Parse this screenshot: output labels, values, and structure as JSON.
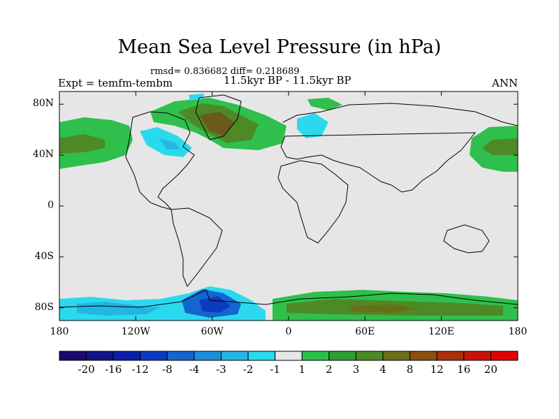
{
  "title": "Mean Sea Level Pressure (in hPa)",
  "stats_line": "rmsd= 0.836682 diff= 0.218689",
  "period": "11.5kyr BP - 11.5kyr BP",
  "experiment": "Expt = temfm-tembm",
  "season": "ANN",
  "lat_ticks": [
    "80N",
    "40N",
    "0",
    "40S",
    "80S"
  ],
  "lat_values": [
    80,
    40,
    0,
    -40,
    -80
  ],
  "lon_ticks": [
    "180",
    "120W",
    "60W",
    "0",
    "60E",
    "120E",
    "180"
  ],
  "lon_values": [
    -180,
    -120,
    -60,
    0,
    60,
    120,
    180
  ],
  "colorbar": {
    "labels": [
      "-20",
      "-16",
      "-12",
      "-8",
      "-4",
      "-3",
      "-2",
      "-1",
      "1",
      "2",
      "3",
      "4",
      "8",
      "12",
      "16",
      "20"
    ],
    "colors": [
      "#1a0a6e",
      "#12128a",
      "#0a1fa8",
      "#0b3cc0",
      "#1565cf",
      "#1d8edb",
      "#22b6e3",
      "#2bd9ee",
      "#e6e6e6",
      "#29c04a",
      "#2f9e35",
      "#4d8a26",
      "#6b6e18",
      "#8a5012",
      "#a8300c",
      "#c81408",
      "#e00000"
    ]
  },
  "map_colors": {
    "background": "#e6e6e6",
    "coast": "#000000"
  }
}
